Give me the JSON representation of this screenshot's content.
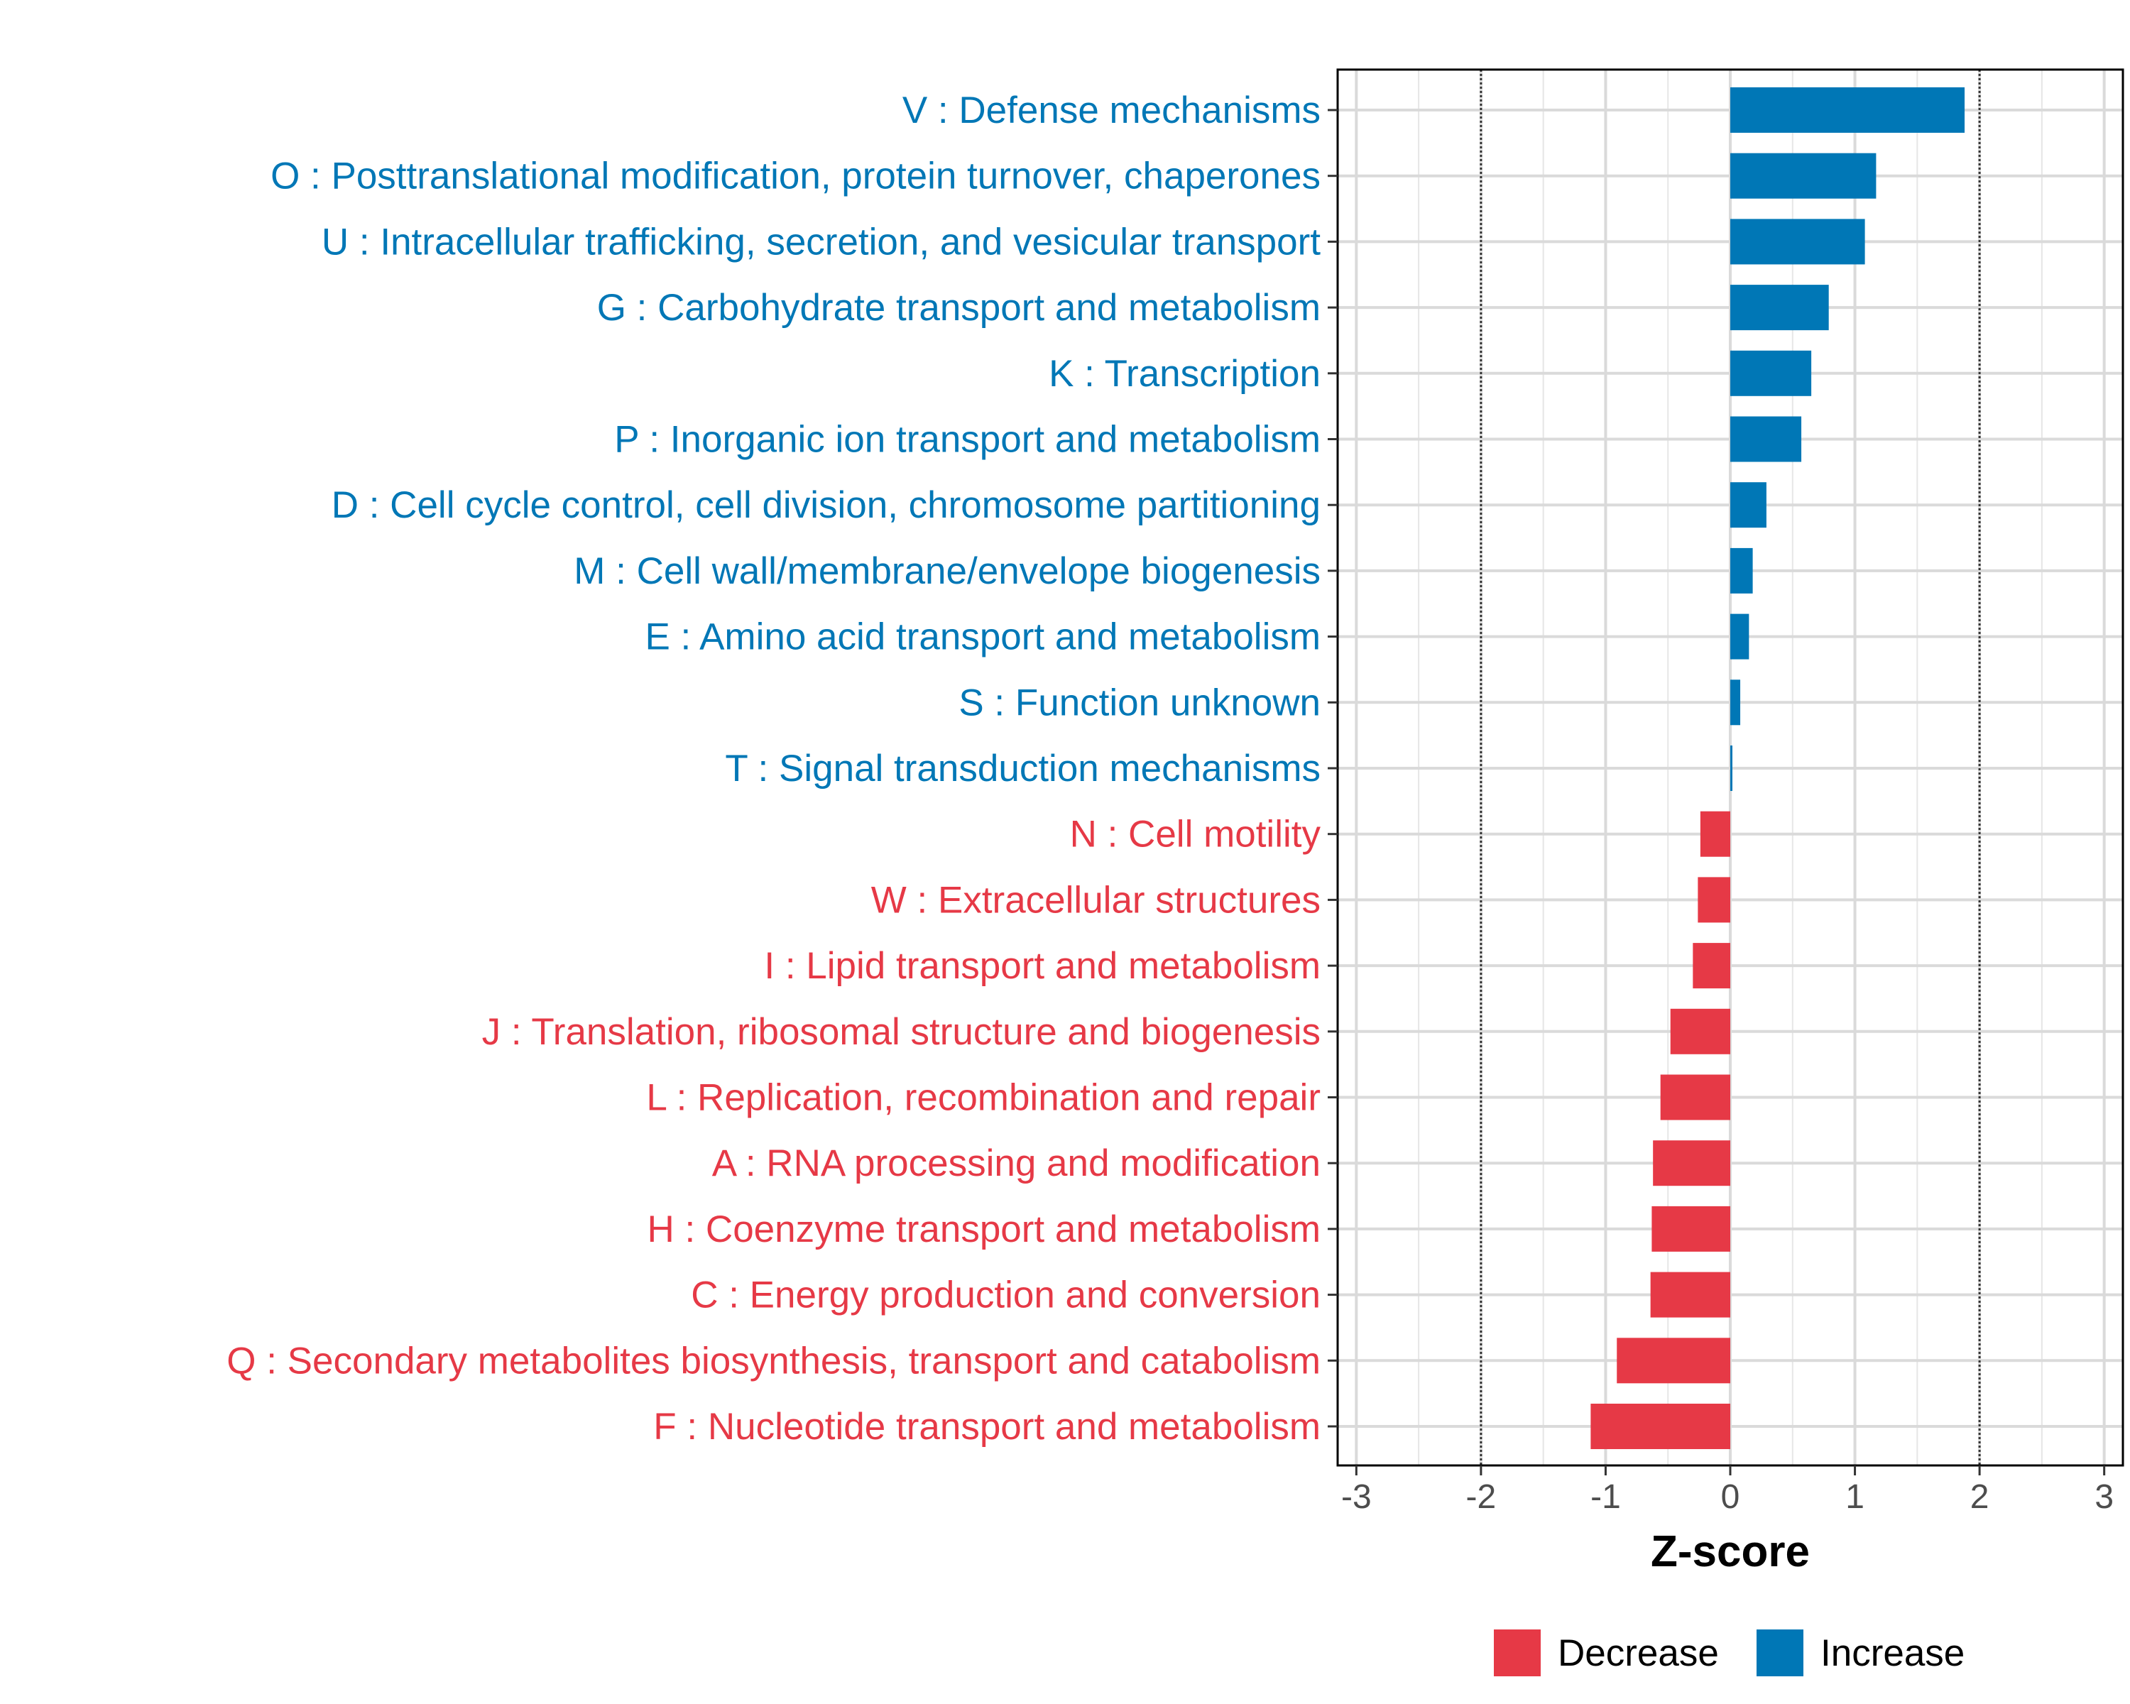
{
  "chart_data": {
    "type": "bar",
    "orientation": "horizontal",
    "xlabel": "Z-score",
    "xlim": [
      -3.15,
      3.15
    ],
    "xticks": [
      -3,
      -2,
      -1,
      0,
      1,
      2,
      3
    ],
    "reference_lines": [
      -2,
      2
    ],
    "grid": true,
    "categories": [
      "V : Defense mechanisms",
      "O : Posttranslational modification, protein turnover, chaperones",
      "U : Intracellular trafficking, secretion, and vesicular transport",
      "G : Carbohydrate transport and metabolism",
      "K : Transcription",
      "P : Inorganic ion transport and metabolism",
      "D : Cell cycle control, cell division, chromosome partitioning",
      "M : Cell wall/membrane/envelope biogenesis",
      "E : Amino acid transport and metabolism",
      "S : Function unknown",
      "T : Signal transduction mechanisms",
      "N : Cell motility",
      "W : Extracellular structures",
      "I : Lipid transport and metabolism",
      "J : Translation, ribosomal structure and biogenesis",
      "L : Replication, recombination and repair",
      "A : RNA processing and modification",
      "H : Coenzyme transport and metabolism",
      "C : Energy production and conversion",
      "Q : Secondary metabolites biosynthesis, transport and catabolism",
      "F : Nucleotide transport and metabolism"
    ],
    "values": [
      1.88,
      1.17,
      1.08,
      0.79,
      0.65,
      0.57,
      0.29,
      0.18,
      0.15,
      0.08,
      0.01,
      -0.24,
      -0.26,
      -0.3,
      -0.48,
      -0.56,
      -0.62,
      -0.63,
      -0.64,
      -0.91,
      -1.12
    ],
    "groups": [
      "Increase",
      "Increase",
      "Increase",
      "Increase",
      "Increase",
      "Increase",
      "Increase",
      "Increase",
      "Increase",
      "Increase",
      "Increase",
      "Decrease",
      "Decrease",
      "Decrease",
      "Decrease",
      "Decrease",
      "Decrease",
      "Decrease",
      "Decrease",
      "Decrease",
      "Decrease"
    ],
    "legend": [
      {
        "label": "Decrease",
        "color": "#E63946"
      },
      {
        "label": "Increase",
        "color": "#0077B6"
      }
    ],
    "legend_position": "bottom-right"
  }
}
